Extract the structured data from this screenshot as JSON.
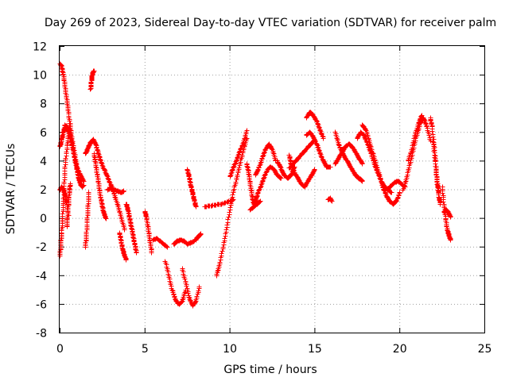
{
  "chart_data": {
    "type": "scatter",
    "title": "Day 269 of 2023, Sidereal Day-to-day VTEC variation (SDTVAR) for receiver palm",
    "xlabel": "GPS time / hours",
    "ylabel": "SDTVAR / TECUs",
    "xlim": [
      0,
      25
    ],
    "ylim": [
      -8,
      12
    ],
    "xticks": [
      "0",
      "5",
      "10",
      "15",
      "20",
      "25"
    ],
    "yticks": [
      "-8",
      "-6",
      "-4",
      "-2",
      "0",
      "2",
      "4",
      "6",
      "8",
      "10",
      "12"
    ],
    "grid": true,
    "marker": "+",
    "color": "#ff0000",
    "segments": [
      {
        "name": "s1",
        "x": [
          0.0,
          0.1,
          0.2,
          0.3,
          0.4,
          0.5,
          0.6,
          0.7,
          0.85,
          1.0,
          1.2,
          1.4
        ],
        "y": [
          10.8,
          10.6,
          10.0,
          9.2,
          8.3,
          7.4,
          6.4,
          5.6,
          4.6,
          3.6,
          3.0,
          2.6
        ]
      },
      {
        "name": "s2",
        "x": [
          0.0,
          0.05,
          0.1,
          0.15,
          0.2,
          0.25,
          0.3,
          0.4,
          0.5,
          0.6
        ],
        "y": [
          -2.6,
          -1.8,
          -1.0,
          0.0,
          1.2,
          2.4,
          3.6,
          4.8,
          5.8,
          6.6
        ]
      },
      {
        "name": "s3",
        "x": [
          0.0,
          0.1,
          0.2,
          0.3,
          0.4,
          0.5,
          0.6,
          0.7,
          0.8,
          0.9,
          1.0,
          1.1,
          1.2,
          1.3,
          1.4
        ],
        "y": [
          5.0,
          5.5,
          6.0,
          6.5,
          6.4,
          6.2,
          5.8,
          5.2,
          4.6,
          4.0,
          3.4,
          2.8,
          2.4,
          2.2,
          2.3
        ]
      },
      {
        "name": "s4",
        "x": [
          0.0,
          0.1,
          0.2,
          0.3,
          0.4,
          0.5
        ],
        "y": [
          2.0,
          2.2,
          2.0,
          1.6,
          1.0,
          0.2
        ]
      },
      {
        "name": "s5",
        "x": [
          0.4,
          0.45,
          0.5,
          0.55,
          0.6
        ],
        "y": [
          -0.6,
          0.2,
          1.0,
          1.8,
          2.4
        ]
      },
      {
        "name": "s6",
        "x": [
          1.8,
          1.85,
          1.9,
          1.95,
          2.0
        ],
        "y": [
          9.0,
          9.6,
          10.0,
          10.2,
          10.3
        ]
      },
      {
        "name": "s7",
        "x": [
          1.5,
          1.65,
          1.8,
          1.95,
          2.1,
          2.25,
          2.4,
          2.6,
          2.8,
          3.0,
          3.2,
          3.4,
          3.6,
          3.8
        ],
        "y": [
          4.5,
          4.9,
          5.3,
          5.5,
          5.2,
          4.6,
          4.0,
          3.4,
          2.9,
          2.3,
          1.7,
          0.9,
          0.1,
          -0.8
        ]
      },
      {
        "name": "s8",
        "x": [
          1.5,
          1.55,
          1.6,
          1.65,
          1.7
        ],
        "y": [
          -2.0,
          -1.2,
          -0.2,
          0.8,
          1.8
        ]
      },
      {
        "name": "s9",
        "x": [
          2.0,
          2.1,
          2.2,
          2.3,
          2.4,
          2.5,
          2.6,
          2.7
        ],
        "y": [
          4.5,
          3.8,
          3.0,
          2.2,
          1.4,
          0.8,
          0.3,
          0.0
        ]
      },
      {
        "name": "s10",
        "x": [
          2.8,
          3.0,
          3.2,
          3.4,
          3.6,
          3.75
        ],
        "y": [
          2.0,
          2.1,
          2.0,
          1.9,
          1.8,
          1.9
        ]
      },
      {
        "name": "s11",
        "x": [
          3.5,
          3.6,
          3.7,
          3.8,
          3.9
        ],
        "y": [
          -1.0,
          -1.6,
          -2.2,
          -2.6,
          -2.9
        ]
      },
      {
        "name": "s12",
        "x": [
          3.9,
          4.0,
          4.1,
          4.2,
          4.3,
          4.4,
          4.5
        ],
        "y": [
          1.0,
          0.6,
          0.0,
          -0.6,
          -1.2,
          -1.8,
          -2.4
        ]
      },
      {
        "name": "s13",
        "x": [
          5.0,
          5.1,
          5.2,
          5.3,
          5.4
        ],
        "y": [
          0.5,
          0.0,
          -0.8,
          -1.6,
          -2.4
        ]
      },
      {
        "name": "s14",
        "x": [
          5.5,
          5.7,
          5.9,
          6.1,
          6.3
        ],
        "y": [
          -1.5,
          -1.4,
          -1.6,
          -1.8,
          -2.0
        ]
      },
      {
        "name": "s15",
        "x": [
          6.2,
          6.4,
          6.6,
          6.8,
          7.0,
          7.2,
          7.4
        ],
        "y": [
          -3.0,
          -4.0,
          -5.0,
          -5.7,
          -6.0,
          -5.8,
          -5.0
        ]
      },
      {
        "name": "s16",
        "x": [
          6.7,
          6.9,
          7.1,
          7.3,
          7.5,
          7.7,
          7.9
        ],
        "y": [
          -1.8,
          -1.6,
          -1.5,
          -1.6,
          -1.8,
          -1.7,
          -1.6
        ]
      },
      {
        "name": "s17",
        "x": [
          7.2,
          7.4,
          7.6,
          7.8,
          8.0,
          8.2
        ],
        "y": [
          -3.5,
          -4.5,
          -5.5,
          -6.1,
          -5.8,
          -4.8
        ]
      },
      {
        "name": "s18",
        "x": [
          7.5,
          7.6,
          7.7,
          7.8,
          7.9,
          8.0
        ],
        "y": [
          3.4,
          2.9,
          2.3,
          1.8,
          1.3,
          0.8
        ]
      },
      {
        "name": "s19",
        "x": [
          8.0,
          8.1,
          8.2,
          8.3
        ],
        "y": [
          -1.5,
          -1.3,
          -1.2,
          -1.1
        ]
      },
      {
        "name": "s20",
        "x": [
          9.2,
          9.4,
          9.6,
          9.8,
          10.0,
          10.2,
          10.4,
          10.6,
          10.8,
          11.0
        ],
        "y": [
          -4.0,
          -3.2,
          -2.0,
          -0.8,
          0.6,
          1.8,
          2.8,
          3.8,
          4.8,
          5.6
        ]
      },
      {
        "name": "s21",
        "x": [
          10.0,
          10.2,
          10.4,
          10.6,
          10.8,
          11.0
        ],
        "y": [
          2.9,
          3.5,
          4.1,
          4.7,
          5.3,
          6.1
        ]
      },
      {
        "name": "s22",
        "x": [
          8.5,
          9.0,
          9.5,
          10.0,
          10.2
        ],
        "y": [
          0.8,
          0.9,
          1.0,
          1.2,
          1.3
        ]
      },
      {
        "name": "s23",
        "x": [
          11.0,
          11.1,
          11.2,
          11.3,
          11.4,
          11.5,
          11.6,
          11.8,
          12.0,
          12.2,
          12.4,
          12.6,
          12.8,
          13.0
        ],
        "y": [
          3.8,
          3.2,
          2.4,
          1.6,
          1.0,
          1.2,
          1.6,
          2.2,
          2.8,
          3.4,
          3.6,
          3.4,
          3.0,
          2.8
        ]
      },
      {
        "name": "s24",
        "x": [
          11.5,
          11.7,
          11.9,
          12.1,
          12.3,
          12.5,
          12.7
        ],
        "y": [
          3.0,
          3.5,
          4.2,
          4.8,
          5.2,
          4.8,
          4.0
        ]
      },
      {
        "name": "s25",
        "x": [
          11.2,
          11.4,
          11.6,
          11.8
        ],
        "y": [
          0.6,
          0.8,
          1.0,
          1.2
        ]
      },
      {
        "name": "s26",
        "x": [
          12.8,
          13.0,
          13.2,
          13.4,
          13.6,
          13.8
        ],
        "y": [
          4.0,
          3.5,
          3.0,
          2.8,
          3.0,
          3.6
        ]
      },
      {
        "name": "s27",
        "x": [
          13.5,
          13.8,
          14.1,
          14.4,
          14.7,
          15.0
        ],
        "y": [
          3.5,
          3.9,
          4.3,
          4.7,
          5.1,
          5.5
        ]
      },
      {
        "name": "s28",
        "x": [
          13.5,
          13.6,
          13.8,
          14.0,
          14.2,
          14.4,
          14.6,
          14.8,
          15.0
        ],
        "y": [
          4.4,
          3.8,
          3.2,
          2.8,
          2.4,
          2.2,
          2.6,
          3.0,
          3.4
        ]
      },
      {
        "name": "s29",
        "x": [
          14.5,
          14.7,
          14.9,
          15.1,
          15.3,
          15.5
        ],
        "y": [
          7.0,
          7.4,
          7.2,
          6.8,
          6.2,
          5.6
        ]
      },
      {
        "name": "s30",
        "x": [
          14.5,
          14.7,
          14.9,
          15.1,
          15.3,
          15.5,
          15.7,
          15.9
        ],
        "y": [
          5.8,
          6.0,
          5.7,
          5.2,
          4.6,
          4.0,
          3.6,
          3.6
        ]
      },
      {
        "name": "s31",
        "x": [
          15.8,
          15.9,
          16.0
        ],
        "y": [
          1.3,
          1.4,
          1.2
        ]
      },
      {
        "name": "s32",
        "x": [
          16.2,
          16.4,
          16.6,
          16.8,
          17.0,
          17.2,
          17.4,
          17.6,
          17.8
        ],
        "y": [
          6.0,
          5.2,
          4.6,
          4.2,
          3.8,
          3.4,
          3.0,
          2.8,
          2.6
        ]
      },
      {
        "name": "s33",
        "x": [
          16.2,
          16.4,
          16.6,
          16.8,
          17.0,
          17.2,
          17.4,
          17.6,
          17.8
        ],
        "y": [
          3.8,
          4.2,
          4.6,
          5.0,
          5.2,
          5.0,
          4.6,
          4.2,
          3.8
        ]
      },
      {
        "name": "s34",
        "x": [
          17.8,
          18.0,
          18.2,
          18.4,
          18.6,
          18.8,
          19.0,
          19.2,
          19.4,
          19.6,
          19.8,
          20.0
        ],
        "y": [
          6.5,
          6.2,
          5.4,
          4.6,
          3.8,
          3.0,
          2.2,
          1.6,
          1.2,
          1.0,
          1.2,
          1.8
        ]
      },
      {
        "name": "s35",
        "x": [
          17.5,
          17.7,
          17.9,
          18.1,
          18.3,
          18.5,
          18.7,
          18.9,
          19.1,
          19.3,
          19.5
        ],
        "y": [
          5.6,
          6.0,
          5.8,
          5.2,
          4.6,
          3.8,
          3.2,
          2.6,
          2.2,
          2.0,
          1.8
        ]
      },
      {
        "name": "s36",
        "x": [
          19.3,
          19.5,
          19.7,
          19.9,
          20.1,
          20.3
        ],
        "y": [
          2.0,
          2.3,
          2.5,
          2.6,
          2.4,
          2.2
        ]
      },
      {
        "name": "s37",
        "x": [
          20.2,
          20.4,
          20.6,
          20.8,
          21.0,
          21.2,
          21.4,
          21.6,
          21.8
        ],
        "y": [
          2.0,
          2.8,
          3.8,
          4.8,
          5.8,
          6.6,
          7.0,
          6.4,
          5.4
        ]
      },
      {
        "name": "s38",
        "x": [
          20.5,
          20.7,
          20.9,
          21.1,
          21.3
        ],
        "y": [
          4.0,
          4.8,
          5.8,
          6.6,
          7.2
        ]
      },
      {
        "name": "s39",
        "x": [
          21.8,
          21.9,
          22.0,
          22.1,
          22.2,
          22.3
        ],
        "y": [
          7.0,
          6.4,
          5.0,
          3.8,
          2.6,
          1.8
        ]
      },
      {
        "name": "s40",
        "x": [
          22.0,
          22.1,
          22.2,
          22.3,
          22.4
        ],
        "y": [
          5.5,
          4.0,
          2.5,
          1.5,
          1.0
        ]
      },
      {
        "name": "s41",
        "x": [
          22.5,
          22.6,
          22.7,
          22.8,
          22.9,
          23.0
        ],
        "y": [
          2.2,
          1.0,
          0.0,
          -0.8,
          -1.2,
          -1.5
        ]
      },
      {
        "name": "s42",
        "x": [
          22.6,
          22.7,
          22.8,
          22.9,
          23.0
        ],
        "y": [
          0.4,
          0.6,
          0.5,
          0.3,
          0.1
        ]
      }
    ]
  }
}
